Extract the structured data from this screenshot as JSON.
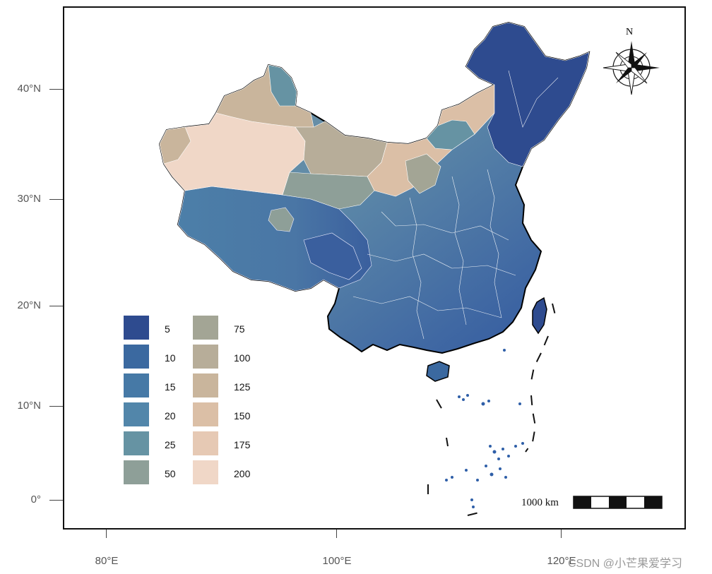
{
  "y_axis": [
    "40°N",
    "30°N",
    "20°N",
    "10°N",
    "0°"
  ],
  "x_axis": [
    "80°E",
    "100°E",
    "120°E"
  ],
  "legend": {
    "items": [
      {
        "label": "5",
        "color": "#2e4b8f"
      },
      {
        "label": "10",
        "color": "#3b69a0"
      },
      {
        "label": "15",
        "color": "#4679a6"
      },
      {
        "label": "20",
        "color": "#5286aa"
      },
      {
        "label": "25",
        "color": "#6693a3"
      },
      {
        "label": "50",
        "color": "#8e9f98"
      },
      {
        "label": "75",
        "color": "#a3a595"
      },
      {
        "label": "100",
        "color": "#b7ad99"
      },
      {
        "label": "125",
        "color": "#c9b59c"
      },
      {
        "label": "150",
        "color": "#dbbfa6"
      },
      {
        "label": "175",
        "color": "#e6c9b4"
      },
      {
        "label": "200",
        "color": "#f0d7c7"
      }
    ]
  },
  "north_arrow_label": "N",
  "scale_bar_label": "1000 km",
  "watermark": "CSDN @小芒果爱学习"
}
